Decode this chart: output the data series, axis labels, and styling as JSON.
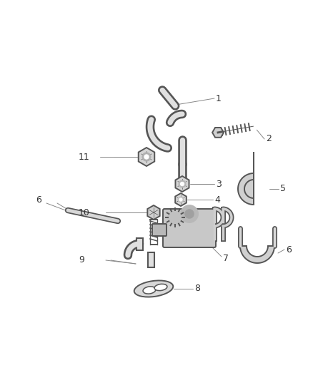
{
  "background_color": "#ffffff",
  "line_color": "#555555",
  "leader_color": "#888888",
  "text_color": "#333333",
  "figsize": [
    4.38,
    5.33
  ],
  "dpi": 100,
  "lw_part": 1.4,
  "lw_leader": 0.7
}
